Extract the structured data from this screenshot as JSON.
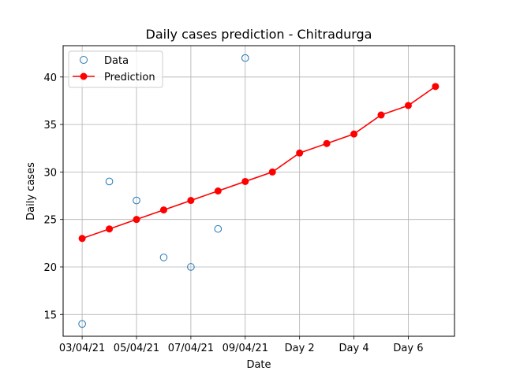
{
  "chart_data": {
    "type": "line",
    "title": "Daily cases prediction - Chitradurga",
    "xlabel": "Date",
    "ylabel": "Daily cases",
    "x_tick_labels": [
      "03/04/21",
      "05/04/21",
      "07/04/21",
      "09/04/21",
      "Day 2",
      "Day 4",
      "Day 6"
    ],
    "x_tick_positions": [
      0,
      2,
      4,
      6,
      8,
      10,
      12
    ],
    "xlim": [
      -0.7,
      13.7
    ],
    "ylim": [
      12.7,
      43.3
    ],
    "y_ticks": [
      15,
      20,
      25,
      30,
      35,
      40
    ],
    "grid": true,
    "legend_position": "top-left",
    "series": [
      {
        "name": "Data",
        "style": "markers-open",
        "color": "#1f77b4",
        "x": [
          0,
          1,
          2,
          3,
          4,
          5,
          6
        ],
        "y": [
          14,
          29,
          27,
          21,
          20,
          24,
          42
        ]
      },
      {
        "name": "Prediction",
        "style": "line-markers",
        "color": "#ff0000",
        "x": [
          0,
          1,
          2,
          3,
          4,
          5,
          6,
          7,
          8,
          9,
          10,
          11,
          12,
          13
        ],
        "y": [
          23,
          24,
          25,
          26,
          27,
          28,
          29,
          30,
          32,
          33,
          34,
          36,
          37,
          39
        ]
      }
    ]
  }
}
